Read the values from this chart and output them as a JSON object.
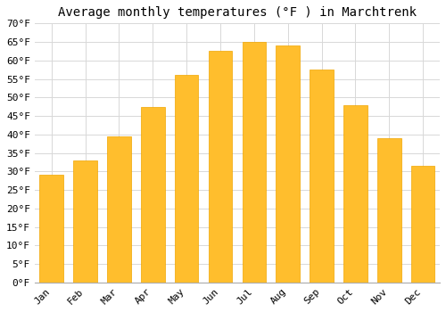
{
  "title": "Average monthly temperatures (°F ) in Marchtrenk",
  "months": [
    "Jan",
    "Feb",
    "Mar",
    "Apr",
    "May",
    "Jun",
    "Jul",
    "Aug",
    "Sep",
    "Oct",
    "Nov",
    "Dec"
  ],
  "values": [
    29,
    33,
    39.5,
    47.5,
    56,
    62.5,
    65,
    64,
    57.5,
    48,
    39,
    31.5
  ],
  "bar_color": "#FFBE2D",
  "bar_edge_color": "#F0A500",
  "background_color": "#ffffff",
  "grid_color": "#d8d8d8",
  "ylim": [
    0,
    70
  ],
  "yticks": [
    0,
    5,
    10,
    15,
    20,
    25,
    30,
    35,
    40,
    45,
    50,
    55,
    60,
    65,
    70
  ],
  "title_fontsize": 10,
  "tick_fontsize": 8,
  "font_family": "monospace"
}
